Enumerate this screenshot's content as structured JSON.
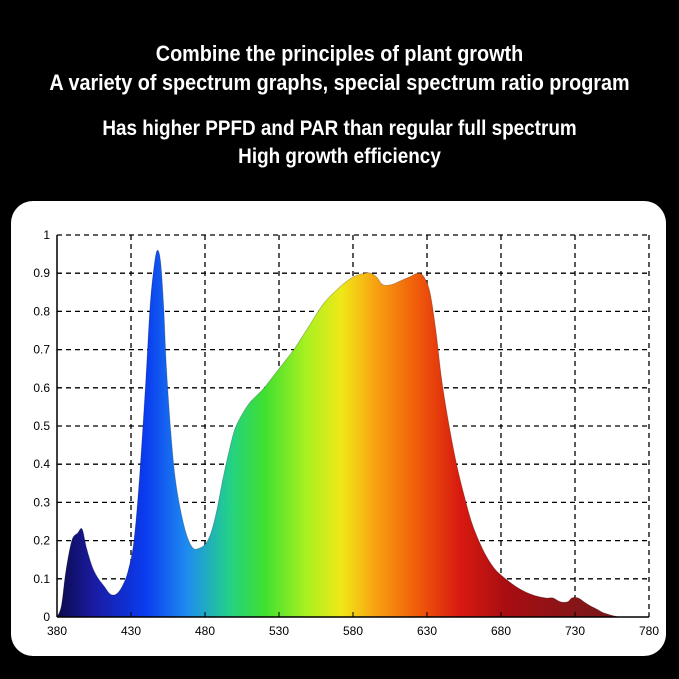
{
  "header": {
    "line1": "Combine the principles of plant growth",
    "line2": "A variety of spectrum graphs, special spectrum ratio program",
    "line3": "Has higher PPFD and PAR than regular full spectrum",
    "line4": "High growth efficiency"
  },
  "chart_data": {
    "type": "area",
    "title": "",
    "xlabel": "",
    "ylabel": "",
    "xlim": [
      380,
      780
    ],
    "ylim": [
      0,
      1
    ],
    "grid": true,
    "x_ticks": [
      "380",
      "430",
      "480",
      "530",
      "580",
      "630",
      "680",
      "730",
      "780"
    ],
    "y_ticks": [
      "0",
      "0.1",
      "0.2",
      "0.3",
      "0.4",
      "0.5",
      "0.6",
      "0.7",
      "0.8",
      "0.9",
      "1"
    ],
    "series": [
      {
        "x": [
          380,
          383,
          386,
          390,
          394,
          397,
          400,
          404,
          408,
          412,
          416,
          420,
          424,
          428,
          432,
          436,
          440,
          443,
          446,
          448,
          450,
          452,
          454,
          457,
          460,
          464,
          468,
          472,
          476,
          480,
          484,
          488,
          492,
          496,
          500,
          505,
          510,
          515,
          520,
          530,
          540,
          550,
          560,
          570,
          580,
          588,
          592,
          596,
          600,
          606,
          612,
          618,
          624,
          628,
          632,
          636,
          640,
          645,
          650,
          655,
          660,
          665,
          670,
          675,
          680,
          690,
          700,
          710,
          715,
          720,
          725,
          728,
          732,
          736,
          740,
          745,
          750,
          760,
          770,
          780
        ],
        "y": [
          0.0,
          0.03,
          0.12,
          0.2,
          0.22,
          0.23,
          0.18,
          0.13,
          0.1,
          0.08,
          0.06,
          0.06,
          0.08,
          0.12,
          0.2,
          0.38,
          0.62,
          0.82,
          0.93,
          0.96,
          0.93,
          0.82,
          0.65,
          0.48,
          0.36,
          0.27,
          0.21,
          0.18,
          0.18,
          0.19,
          0.22,
          0.28,
          0.36,
          0.43,
          0.49,
          0.53,
          0.56,
          0.58,
          0.6,
          0.65,
          0.7,
          0.76,
          0.82,
          0.86,
          0.89,
          0.9,
          0.9,
          0.89,
          0.87,
          0.87,
          0.88,
          0.89,
          0.9,
          0.89,
          0.85,
          0.75,
          0.62,
          0.5,
          0.4,
          0.32,
          0.25,
          0.2,
          0.16,
          0.13,
          0.11,
          0.08,
          0.06,
          0.05,
          0.05,
          0.04,
          0.04,
          0.05,
          0.05,
          0.04,
          0.03,
          0.02,
          0.01,
          0.0,
          0.0,
          0.0
        ]
      }
    ]
  }
}
